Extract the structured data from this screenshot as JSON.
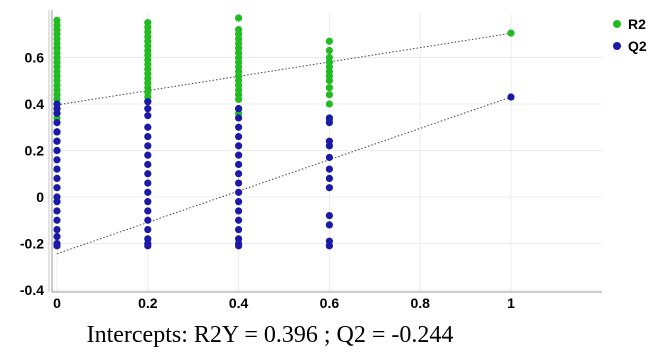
{
  "chart_data": {
    "type": "scatter",
    "xlim": [
      0,
      1.2
    ],
    "ylim": [
      -0.4,
      0.8
    ],
    "x_ticks": [
      "0",
      "0.2",
      "0.4",
      "0.6",
      "0.8",
      "1"
    ],
    "y_ticks": [
      "-0.4",
      "-0.2",
      "0",
      "0.2",
      "0.4",
      "0.6"
    ],
    "grid": true,
    "legend_position": "top-right",
    "series": [
      {
        "name": "R2",
        "color": "#22bb22",
        "regression": {
          "intercept": 0.396,
          "slope": 0.308
        },
        "points": [
          [
            0,
            0.76
          ],
          [
            0,
            0.74
          ],
          [
            0,
            0.72
          ],
          [
            0,
            0.7
          ],
          [
            0,
            0.68
          ],
          [
            0,
            0.66
          ],
          [
            0,
            0.64
          ],
          [
            0,
            0.62
          ],
          [
            0,
            0.6
          ],
          [
            0,
            0.58
          ],
          [
            0,
            0.56
          ],
          [
            0,
            0.54
          ],
          [
            0,
            0.52
          ],
          [
            0,
            0.5
          ],
          [
            0,
            0.48
          ],
          [
            0,
            0.46
          ],
          [
            0,
            0.44
          ],
          [
            0,
            0.42
          ],
          [
            0,
            0.4
          ],
          [
            0,
            0.38
          ],
          [
            0,
            0.36
          ],
          [
            0,
            0.34
          ],
          [
            0.2,
            0.75
          ],
          [
            0.2,
            0.73
          ],
          [
            0.2,
            0.71
          ],
          [
            0.2,
            0.69
          ],
          [
            0.2,
            0.67
          ],
          [
            0.2,
            0.65
          ],
          [
            0.2,
            0.63
          ],
          [
            0.2,
            0.61
          ],
          [
            0.2,
            0.59
          ],
          [
            0.2,
            0.57
          ],
          [
            0.2,
            0.55
          ],
          [
            0.2,
            0.53
          ],
          [
            0.2,
            0.51
          ],
          [
            0.2,
            0.49
          ],
          [
            0.2,
            0.47
          ],
          [
            0.2,
            0.45
          ],
          [
            0.2,
            0.43
          ],
          [
            0.2,
            0.41
          ],
          [
            0.4,
            0.77
          ],
          [
            0.4,
            0.72
          ],
          [
            0.4,
            0.7
          ],
          [
            0.4,
            0.68
          ],
          [
            0.4,
            0.66
          ],
          [
            0.4,
            0.64
          ],
          [
            0.4,
            0.62
          ],
          [
            0.4,
            0.6
          ],
          [
            0.4,
            0.58
          ],
          [
            0.4,
            0.56
          ],
          [
            0.4,
            0.54
          ],
          [
            0.4,
            0.52
          ],
          [
            0.4,
            0.5
          ],
          [
            0.4,
            0.48
          ],
          [
            0.4,
            0.46
          ],
          [
            0.4,
            0.44
          ],
          [
            0.4,
            0.42
          ],
          [
            0.4,
            0.38
          ],
          [
            0.4,
            0.36
          ],
          [
            0.6,
            0.67
          ],
          [
            0.6,
            0.63
          ],
          [
            0.6,
            0.6
          ],
          [
            0.6,
            0.58
          ],
          [
            0.6,
            0.56
          ],
          [
            0.6,
            0.54
          ],
          [
            0.6,
            0.52
          ],
          [
            0.6,
            0.5
          ],
          [
            0.6,
            0.47
          ],
          [
            0.6,
            0.44
          ],
          [
            0.6,
            0.4
          ],
          [
            0.6,
            0.33
          ],
          [
            1,
            0.705
          ]
        ]
      },
      {
        "name": "Q2",
        "color": "#1a1aa6",
        "regression": {
          "intercept": -0.244,
          "slope": 0.674
        },
        "points": [
          [
            0,
            0.4
          ],
          [
            0,
            0.36
          ],
          [
            0,
            0.32
          ],
          [
            0,
            0.28
          ],
          [
            0,
            0.24
          ],
          [
            0,
            0.2
          ],
          [
            0,
            0.16
          ],
          [
            0,
            0.12
          ],
          [
            0,
            0.08
          ],
          [
            0,
            0.04
          ],
          [
            0,
            0.0
          ],
          [
            0,
            -0.02
          ],
          [
            0,
            -0.06
          ],
          [
            0,
            -0.1
          ],
          [
            0,
            -0.14
          ],
          [
            0,
            -0.17
          ],
          [
            0,
            -0.2
          ],
          [
            0,
            -0.21
          ],
          [
            0,
            0.2
          ],
          [
            0,
            0.24
          ],
          [
            0,
            0.28
          ],
          [
            0,
            0.38
          ],
          [
            0.2,
            0.41
          ],
          [
            0.2,
            0.38
          ],
          [
            0.2,
            0.35
          ],
          [
            0.2,
            0.3
          ],
          [
            0.2,
            0.26
          ],
          [
            0.2,
            0.22
          ],
          [
            0.2,
            0.18
          ],
          [
            0.2,
            0.14
          ],
          [
            0.2,
            0.1
          ],
          [
            0.2,
            0.06
          ],
          [
            0.2,
            0.02
          ],
          [
            0.2,
            -0.02
          ],
          [
            0.2,
            -0.06
          ],
          [
            0.2,
            -0.1
          ],
          [
            0.2,
            -0.14
          ],
          [
            0.2,
            -0.18
          ],
          [
            0.2,
            -0.2
          ],
          [
            0.2,
            -0.21
          ],
          [
            0.4,
            0.38
          ],
          [
            0.4,
            0.34
          ],
          [
            0.4,
            0.3
          ],
          [
            0.4,
            0.26
          ],
          [
            0.4,
            0.22
          ],
          [
            0.4,
            0.18
          ],
          [
            0.4,
            0.14
          ],
          [
            0.4,
            0.1
          ],
          [
            0.4,
            0.06
          ],
          [
            0.4,
            0.02
          ],
          [
            0.4,
            -0.02
          ],
          [
            0.4,
            -0.06
          ],
          [
            0.4,
            -0.1
          ],
          [
            0.4,
            -0.14
          ],
          [
            0.4,
            -0.18
          ],
          [
            0.4,
            -0.2
          ],
          [
            0.4,
            -0.21
          ],
          [
            0.6,
            0.34
          ],
          [
            0.6,
            0.32
          ],
          [
            0.6,
            0.24
          ],
          [
            0.6,
            0.22
          ],
          [
            0.6,
            0.17
          ],
          [
            0.6,
            0.12
          ],
          [
            0.6,
            0.08
          ],
          [
            0.6,
            0.04
          ],
          [
            0.6,
            -0.08
          ],
          [
            0.6,
            -0.12
          ],
          [
            0.6,
            -0.19
          ],
          [
            0.6,
            -0.21
          ],
          [
            1,
            0.43
          ]
        ]
      }
    ],
    "caption": "Intercepts: R2Y = 0.396 ; Q2 = -0.244"
  }
}
